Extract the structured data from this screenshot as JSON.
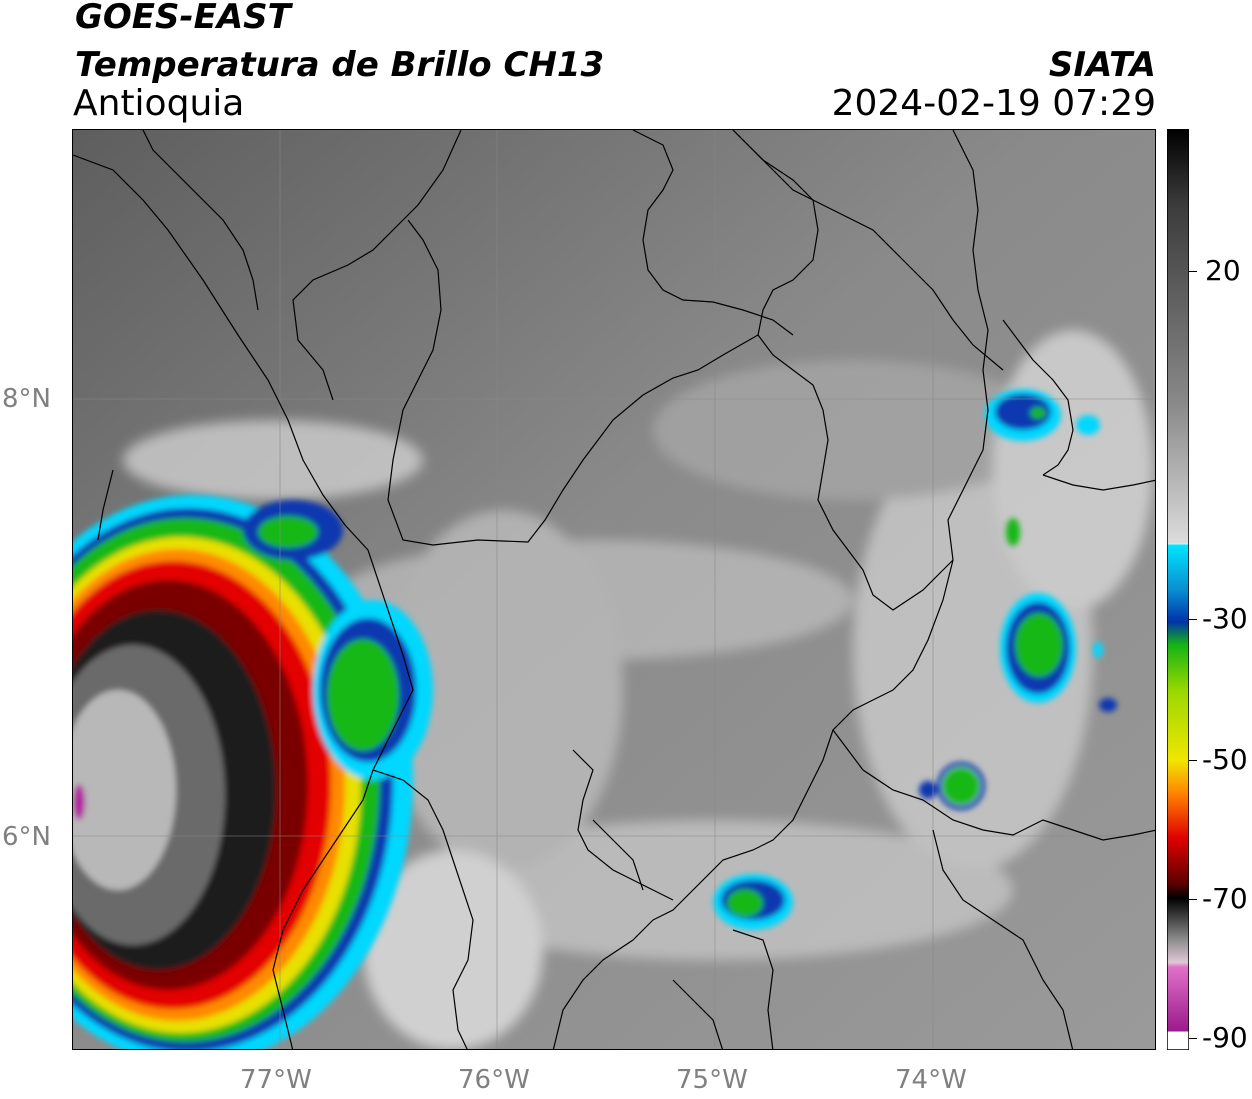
{
  "header": {
    "satellite": "GOES-EAST",
    "product": "Temperatura de Brillo CH13",
    "region": "Antioquia",
    "source": "SIATA",
    "datetime": "2024-02-19 07:29"
  },
  "map": {
    "lat_labels": [
      "8°N",
      "6°N"
    ],
    "lon_labels": [
      "77°W",
      "76°W",
      "75°W",
      "74°W"
    ]
  },
  "colorbar": {
    "tick_labels": [
      "20",
      "-30",
      "-50",
      "-70",
      "-90"
    ],
    "range": [
      -90,
      30
    ],
    "colors": {
      "warm": "#4a4a4a",
      "white": "#f5f5f5",
      "cyan": "#00e5ff",
      "blue": "#0033aa",
      "green": "#14b414",
      "yellow": "#f0e600",
      "orange": "#ff8800",
      "red": "#e00000",
      "darkred": "#5a0000",
      "black": "#000000",
      "gray": "#8c8c8c",
      "magenta": "#b01e9e"
    }
  }
}
